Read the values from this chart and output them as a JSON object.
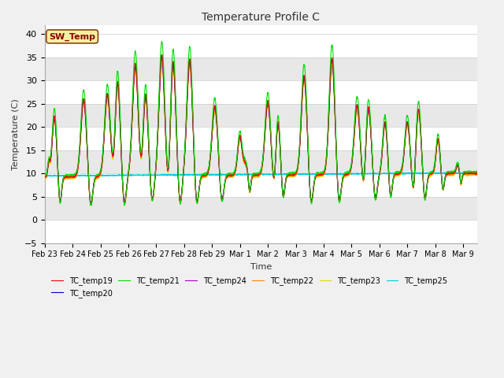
{
  "title": "Temperature Profile C",
  "xlabel": "Time",
  "ylabel": "Temperature (C)",
  "ylim": [
    -5,
    42
  ],
  "background_color": "#f0f0f0",
  "plot_bg_color": "#ffffff",
  "legend_label": "SW_Temp",
  "legend_box_color": "#f5f0a0",
  "legend_box_edge": "#8B4513",
  "legend_text_color": "#8B0000",
  "series_colors": {
    "TC_temp19": "#ff0000",
    "TC_temp20": "#0000cc",
    "TC_temp21": "#00dd00",
    "TC_temp22": "#ff8800",
    "TC_temp23": "#dddd00",
    "TC_temp24": "#aa00cc",
    "TC_temp25": "#00ccdd"
  },
  "x_tick_labels": [
    "Feb 23",
    "Feb 24",
    "Feb 25",
    "Feb 26",
    "Feb 27",
    "Feb 28",
    "Feb 29",
    "Mar 1",
    "Mar 2",
    "Mar 3",
    "Mar 4",
    "Mar 5",
    "Mar 6",
    "Mar 7",
    "Mar 8",
    "Mar 9"
  ],
  "x_tick_positions": [
    0,
    1,
    2,
    3,
    4,
    5,
    6,
    7,
    8,
    9,
    10,
    11,
    12,
    13,
    14,
    15
  ],
  "y_ticks": [
    -5,
    0,
    5,
    10,
    15,
    20,
    25,
    30,
    35,
    40
  ],
  "band_color": "#e8e8e8",
  "grid_color": "#cccccc",
  "line_width": 0.8,
  "figsize": [
    6.4,
    4.8
  ],
  "dpi": 100
}
